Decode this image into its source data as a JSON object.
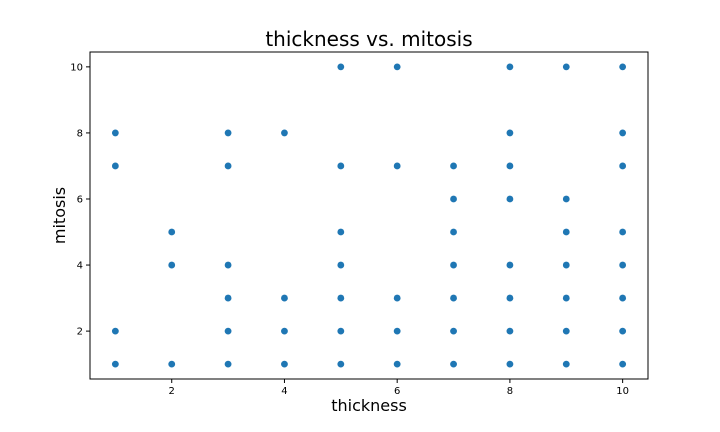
{
  "chart_data": {
    "type": "scatter",
    "title": "thickness vs. mitosis",
    "xlabel": "thickness",
    "ylabel": "mitosis",
    "xlim": [
      0.55,
      10.45
    ],
    "ylim": [
      0.55,
      10.45
    ],
    "xticks": [
      2,
      4,
      6,
      8,
      10
    ],
    "yticks": [
      2,
      4,
      6,
      8,
      10
    ],
    "grid": false,
    "marker_color": "#1f77b4",
    "points": [
      [
        1,
        1
      ],
      [
        1,
        2
      ],
      [
        1,
        7
      ],
      [
        1,
        8
      ],
      [
        2,
        1
      ],
      [
        2,
        4
      ],
      [
        2,
        5
      ],
      [
        3,
        1
      ],
      [
        3,
        2
      ],
      [
        3,
        3
      ],
      [
        3,
        4
      ],
      [
        3,
        7
      ],
      [
        3,
        8
      ],
      [
        4,
        1
      ],
      [
        4,
        2
      ],
      [
        4,
        3
      ],
      [
        4,
        8
      ],
      [
        5,
        1
      ],
      [
        5,
        2
      ],
      [
        5,
        3
      ],
      [
        5,
        4
      ],
      [
        5,
        5
      ],
      [
        5,
        7
      ],
      [
        5,
        10
      ],
      [
        6,
        1
      ],
      [
        6,
        2
      ],
      [
        6,
        3
      ],
      [
        6,
        7
      ],
      [
        6,
        10
      ],
      [
        7,
        1
      ],
      [
        7,
        2
      ],
      [
        7,
        3
      ],
      [
        7,
        4
      ],
      [
        7,
        5
      ],
      [
        7,
        6
      ],
      [
        7,
        7
      ],
      [
        8,
        1
      ],
      [
        8,
        2
      ],
      [
        8,
        3
      ],
      [
        8,
        4
      ],
      [
        8,
        6
      ],
      [
        8,
        7
      ],
      [
        8,
        8
      ],
      [
        8,
        10
      ],
      [
        9,
        1
      ],
      [
        9,
        2
      ],
      [
        9,
        3
      ],
      [
        9,
        4
      ],
      [
        9,
        5
      ],
      [
        9,
        6
      ],
      [
        9,
        10
      ],
      [
        10,
        1
      ],
      [
        10,
        2
      ],
      [
        10,
        3
      ],
      [
        10,
        4
      ],
      [
        10,
        5
      ],
      [
        10,
        7
      ],
      [
        10,
        8
      ],
      [
        10,
        10
      ]
    ]
  }
}
